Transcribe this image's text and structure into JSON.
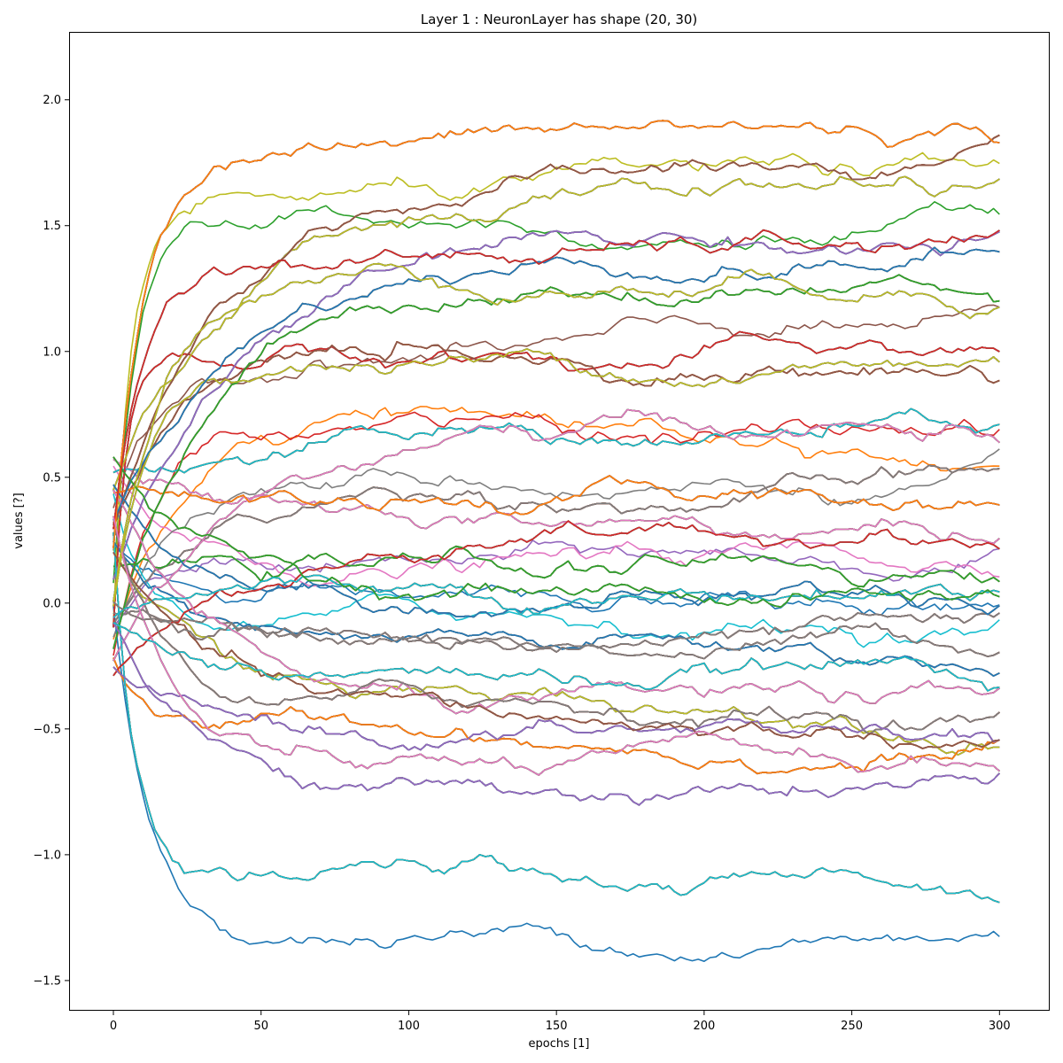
{
  "chart_data": {
    "type": "line",
    "title": "Layer 1 : NeuronLayer has shape (20, 30)",
    "xlabel": "epochs [1]",
    "ylabel": "values [?]",
    "xlim": [
      -15,
      317
    ],
    "ylim": [
      -1.62,
      2.27
    ],
    "x_range": [
      0,
      300
    ],
    "xticks": [
      0,
      50,
      100,
      150,
      200,
      250,
      300
    ],
    "xtick_labels": [
      "0",
      "50",
      "100",
      "150",
      "200",
      "250",
      "300"
    ],
    "yticks": [
      -1.5,
      -1.0,
      -0.5,
      0.0,
      0.5,
      1.0,
      1.5,
      2.0
    ],
    "ytick_labels": [
      "−1.5",
      "−1.0",
      "−0.5",
      "0.0",
      "0.5",
      "1.0",
      "1.5",
      "2.0"
    ],
    "series_count": 600,
    "value_cap": 2.1,
    "grid": false,
    "legend": "none",
    "color_cycle": [
      "#1f77b4",
      "#ff7f0e",
      "#2ca02c",
      "#d62728",
      "#9467bd",
      "#8c564b",
      "#e377c2",
      "#7f7f7f",
      "#bcbd22",
      "#17becf"
    ],
    "series_summary": [
      {
        "final_value_band": "top cluster",
        "approx_final": 2.1
      },
      {
        "final_value_band": "upper",
        "approx_final": 1.5
      },
      {
        "final_value_band": "middle",
        "approx_final": 0.5
      },
      {
        "final_value_band": "lower",
        "approx_final": -0.5
      },
      {
        "final_value_band": "bottom",
        "approx_final": -1.4
      }
    ]
  }
}
